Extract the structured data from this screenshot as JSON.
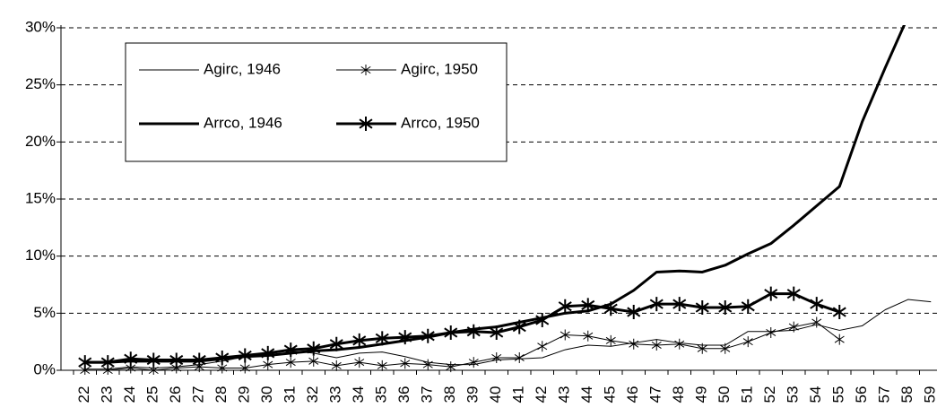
{
  "chart_data": {
    "type": "line",
    "categories": [
      "22",
      "23",
      "24",
      "25",
      "26",
      "27",
      "28",
      "29",
      "30",
      "31",
      "32",
      "33",
      "34",
      "35",
      "36",
      "37",
      "38",
      "39",
      "40",
      "41",
      "42",
      "43",
      "44",
      "45",
      "46",
      "47",
      "48",
      "49",
      "50",
      "51",
      "52",
      "53",
      "54",
      "55",
      "56",
      "57",
      "58",
      "59"
    ],
    "ylim": [
      0,
      30
    ],
    "yticks": [
      {
        "value": 0,
        "label": "0%"
      },
      {
        "value": 5,
        "label": "5%"
      },
      {
        "value": 10,
        "label": "10%"
      },
      {
        "value": 15,
        "label": "15%"
      },
      {
        "value": 20,
        "label": "20%"
      },
      {
        "value": 25,
        "label": "25%"
      },
      {
        "value": 30,
        "label": "30%"
      }
    ],
    "grid": true,
    "series": [
      {
        "name": "Agirc, 1946",
        "color": "#000000",
        "width": 1,
        "marker": "none",
        "values": [
          0.1,
          0.1,
          0.3,
          0.2,
          0.3,
          0.5,
          0.8,
          1.2,
          1.5,
          1.7,
          1.5,
          1.1,
          1.5,
          1.6,
          1.2,
          0.7,
          0.5,
          0.5,
          0.9,
          1.0,
          1.1,
          1.8,
          2.2,
          2.1,
          2.4,
          2.7,
          2.4,
          2.2,
          2.2,
          3.4,
          3.4,
          3.5,
          4.0,
          3.5,
          3.9,
          5.3,
          6.2,
          6.0
        ]
      },
      {
        "name": "Agirc, 1950",
        "color": "#000000",
        "width": 1,
        "marker": "star",
        "values": [
          0,
          0,
          0.2,
          0,
          0.2,
          0.3,
          0.2,
          0.2,
          0.5,
          0.7,
          0.8,
          0.4,
          0.7,
          0.4,
          0.6,
          0.5,
          0.3,
          0.7,
          1.1,
          1.1,
          2.1,
          3.1,
          3.0,
          2.6,
          2.3,
          2.2,
          2.3,
          1.9,
          1.9,
          2.5,
          3.3,
          3.8,
          4.2,
          2.7,
          null,
          null,
          null,
          null
        ]
      },
      {
        "name": "Arrco, 1946",
        "color": "#000000",
        "width": 3,
        "marker": "none",
        "values": [
          0.7,
          0.7,
          0.8,
          0.8,
          0.8,
          0.8,
          1.0,
          1.2,
          1.3,
          1.5,
          1.7,
          1.8,
          2.0,
          2.3,
          2.6,
          2.9,
          3.3,
          3.6,
          3.8,
          4.2,
          4.6,
          5.0,
          5.2,
          5.8,
          7.0,
          8.6,
          8.7,
          8.6,
          9.2,
          10.2,
          11.1,
          12.7,
          14.4,
          16.1,
          21.8,
          26.5,
          31,
          null
        ]
      },
      {
        "name": "Arrco, 1950",
        "color": "#000000",
        "width": 3,
        "marker": "star",
        "values": [
          0.7,
          0.7,
          1.0,
          0.9,
          0.9,
          0.9,
          1.1,
          1.3,
          1.5,
          1.8,
          1.9,
          2.3,
          2.6,
          2.8,
          2.9,
          3.0,
          3.3,
          3.4,
          3.3,
          3.8,
          4.4,
          5.6,
          5.7,
          5.4,
          5.1,
          5.8,
          5.8,
          5.5,
          5.5,
          5.6,
          6.7,
          6.7,
          5.8,
          5.1,
          null,
          null,
          null,
          null
        ]
      }
    ]
  }
}
